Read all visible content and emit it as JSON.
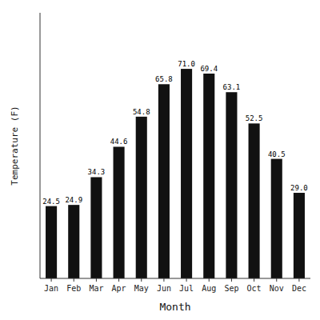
{
  "chart_data": {
    "type": "bar",
    "categories": [
      "Jan",
      "Feb",
      "Mar",
      "Apr",
      "May",
      "Jun",
      "Jul",
      "Aug",
      "Sep",
      "Oct",
      "Nov",
      "Dec"
    ],
    "values": [
      24.5,
      24.9,
      34.3,
      44.6,
      54.8,
      65.8,
      71.0,
      69.4,
      63.1,
      52.5,
      40.5,
      29.0
    ],
    "value_labels": [
      "24.5",
      "24.9",
      "34.3",
      "44.6",
      "54.8",
      "65.8",
      "71.0",
      "69.4",
      "63.1",
      "52.5",
      "40.5",
      "29.0"
    ],
    "color": "#111111",
    "xlabel": "Month",
    "ylabel": "Temperature (F)",
    "ylim": [
      0,
      90
    ],
    "data_labels": true,
    "tick_labels": "x",
    "grid": false
  }
}
